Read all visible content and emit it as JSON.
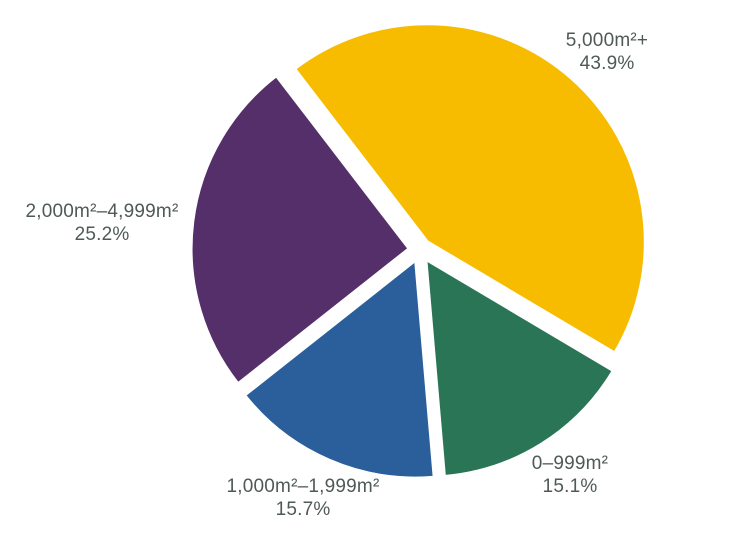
{
  "chart_data": {
    "type": "pie",
    "title": "",
    "background": "#FFFFFF",
    "label_text_color": "#4F5A57",
    "legend_position": "labels-outside-slices",
    "start_angle_deg": -37.5,
    "explode_all_slices": true,
    "slices": [
      {
        "label": "5,000m²+",
        "pct_label": "43.9%",
        "value": 43.9,
        "color": "#F7BC00"
      },
      {
        "label": "0–999m²",
        "pct_label": "15.1%",
        "value": 15.1,
        "color": "#2B7557"
      },
      {
        "label": "1,000m²–1,999m²",
        "pct_label": "15.7%",
        "value": 15.7,
        "color": "#2B5F9C"
      },
      {
        "label": "2,000m²–4,999m²",
        "pct_label": "25.2%",
        "value": 25.2,
        "color": "#552F6A"
      }
    ]
  }
}
